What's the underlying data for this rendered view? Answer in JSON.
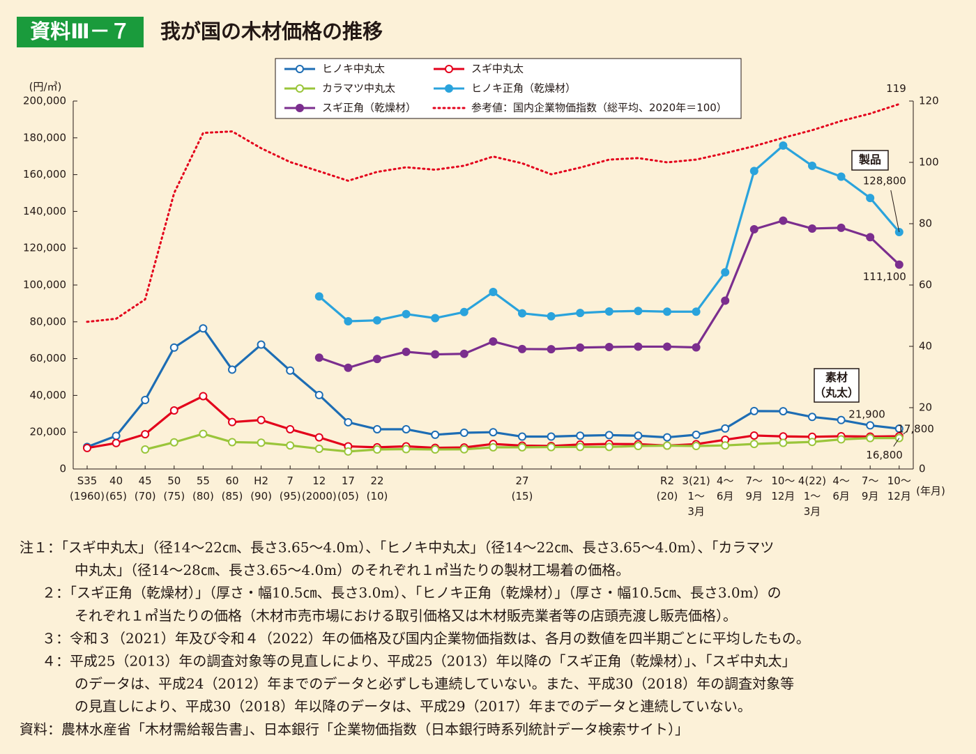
{
  "header": {
    "label": "資料Ⅲ－７",
    "title": "我が国の木材価格の推移"
  },
  "chart_data": {
    "type": "line",
    "y_unit_label": "(円/㎥)",
    "x_unit_label": "(年月)",
    "categories": [
      "S35\n(1960)",
      "40\n(65)",
      "45\n(70)",
      "50\n(75)",
      "55\n(80)",
      "60\n(85)",
      "H2\n(90)",
      "7\n(95)",
      "12\n(2000)",
      "17\n(05)",
      "22\n(10)",
      null,
      null,
      null,
      null,
      "27\n(15)",
      null,
      null,
      null,
      null,
      "R2\n(20)",
      "3(21)\n1～\n3月",
      "4～\n6月",
      "7～\n9月",
      "10～\n12月",
      "4(22)\n1～\n3月",
      "4～\n6月",
      "7～\n9月",
      "10～\n12月"
    ],
    "ylim": [
      0,
      200000
    ],
    "yticks": [
      0,
      {
        "value": 20000,
        "label": "20,000"
      },
      {
        "value": 40000,
        "label": "40,000"
      },
      {
        "value": 60000,
        "label": "60,000"
      },
      {
        "value": 80000,
        "label": "80,000"
      },
      {
        "value": 100000,
        "label": "100,000"
      },
      {
        "value": 120000,
        "label": "120,000"
      },
      {
        "value": 140000,
        "label": "140,000"
      },
      {
        "value": 160000,
        "label": "160,000"
      },
      {
        "value": 180000,
        "label": "180,000"
      },
      {
        "value": 200000,
        "label": "200,000"
      }
    ],
    "y2lim": [
      0,
      120
    ],
    "y2ticks": [
      0,
      20,
      40,
      60,
      80,
      100,
      120
    ],
    "legend": "top",
    "series": [
      {
        "name": "ヒノキ中丸太",
        "color": "#1d6db4",
        "marker": "open",
        "values": [
          12000,
          18000,
          37500,
          66000,
          76400,
          54000,
          67600,
          53500,
          40200,
          25400,
          21600,
          21600,
          18600,
          19700,
          20000,
          17600,
          17600,
          18100,
          18400,
          18100,
          17200,
          18600,
          22000,
          31500,
          31400,
          28300,
          26600,
          23700,
          21900
        ],
        "value_labels": [
          null,
          null,
          null,
          null,
          null,
          null,
          null,
          null,
          null,
          null,
          null,
          null,
          null,
          null,
          null,
          null,
          null,
          null,
          null,
          null,
          null,
          null,
          null,
          null,
          null,
          null,
          null,
          null,
          "21,900"
        ]
      },
      {
        "name": "スギ中丸太",
        "color": "#e3001b",
        "marker": "open",
        "values": [
          11400,
          14100,
          18900,
          31800,
          39600,
          25500,
          26600,
          21600,
          17200,
          12300,
          11800,
          12300,
          11500,
          11700,
          13600,
          12700,
          12500,
          13300,
          13600,
          13500,
          12700,
          13500,
          15900,
          18200,
          17700,
          17500,
          17800,
          17600,
          17800
        ],
        "value_labels": [
          null,
          null,
          null,
          null,
          null,
          null,
          null,
          null,
          null,
          null,
          null,
          null,
          null,
          null,
          null,
          null,
          null,
          null,
          null,
          null,
          null,
          null,
          null,
          null,
          null,
          null,
          null,
          null,
          "17,800"
        ]
      },
      {
        "name": "カラマツ中丸太",
        "color": "#9ac53a",
        "marker": "open",
        "values": [
          null,
          null,
          10600,
          14500,
          19100,
          14600,
          14300,
          12800,
          11000,
          9500,
          10600,
          10800,
          10600,
          10700,
          11800,
          11800,
          11900,
          12000,
          12000,
          12500,
          12700,
          12500,
          12800,
          13600,
          14200,
          14700,
          16100,
          16800,
          16800
        ],
        "value_labels": [
          null,
          null,
          null,
          null,
          null,
          null,
          null,
          null,
          null,
          null,
          null,
          null,
          null,
          null,
          null,
          null,
          null,
          null,
          null,
          null,
          null,
          null,
          null,
          null,
          null,
          null,
          null,
          null,
          "16,800"
        ]
      },
      {
        "name": "ヒノキ正角（乾燥材）",
        "color": "#2aa3dc",
        "marker": "filled",
        "values": [
          null,
          null,
          null,
          null,
          null,
          null,
          null,
          null,
          93800,
          80300,
          80800,
          84200,
          82000,
          85300,
          96200,
          84600,
          83000,
          84800,
          85600,
          85900,
          85500,
          85500,
          106900,
          162000,
          175800,
          164800,
          158900,
          147300,
          128800
        ],
        "value_labels": [
          null,
          null,
          null,
          null,
          null,
          null,
          null,
          null,
          null,
          null,
          null,
          null,
          null,
          null,
          null,
          null,
          null,
          null,
          null,
          null,
          null,
          null,
          null,
          null,
          null,
          null,
          null,
          null,
          "128,800"
        ]
      },
      {
        "name": "スギ正角（乾燥材）",
        "color": "#7b2e8e",
        "marker": "filled",
        "values": [
          null,
          null,
          null,
          null,
          null,
          null,
          null,
          null,
          60500,
          55000,
          59800,
          63700,
          62300,
          62600,
          69300,
          65200,
          65100,
          66000,
          66300,
          66500,
          66500,
          66100,
          91500,
          130300,
          135000,
          130700,
          131100,
          126000,
          111100
        ],
        "value_labels": [
          null,
          null,
          null,
          null,
          null,
          null,
          null,
          null,
          null,
          null,
          null,
          null,
          null,
          null,
          null,
          null,
          null,
          null,
          null,
          null,
          null,
          null,
          null,
          null,
          null,
          null,
          null,
          null,
          "111,100"
        ]
      },
      {
        "name": "参考値：国内企業物価指数（総平均、2020年＝100）",
        "color": "#e3001b",
        "marker": "none",
        "dash": "dotted",
        "axis": "y2",
        "values": [
          48.0,
          49.0,
          55.3,
          90.0,
          109.6,
          110.1,
          104.6,
          100.1,
          97.1,
          94.0,
          96.9,
          98.4,
          97.6,
          98.9,
          101.9,
          99.7,
          96.1,
          98.3,
          100.9,
          101.4,
          100.0,
          100.9,
          103.0,
          105.3,
          108.0,
          110.5,
          113.5,
          115.9,
          119
        ],
        "value_labels": [
          null,
          null,
          null,
          null,
          null,
          null,
          null,
          null,
          null,
          null,
          null,
          null,
          null,
          null,
          null,
          null,
          null,
          null,
          null,
          null,
          null,
          null,
          null,
          null,
          null,
          null,
          null,
          null,
          "119"
        ]
      }
    ],
    "annotations": [
      "製品",
      "素材\n（丸太）"
    ]
  },
  "notes": [
    "注１：「スギ中丸太」（径14～22㎝、長さ3.65～4.0m）、「ヒノキ中丸太」（径14～22㎝、長さ3.65～4.0m）、「カラマツ",
    "中丸太」（径14～28㎝、長さ3.65～4.0m）のそれぞれ１㎥当たりの製材工場着の価格。",
    "２：「スギ正角（乾燥材）」（厚さ・幅10.5㎝、長さ3.0m）、「ヒノキ正角（乾燥材）」（厚さ・幅10.5㎝、長さ3.0m）の",
    "それぞれ１㎥当たりの価格（木材市売市場における取引価格又は木材販売業者等の店頭売渡し販売価格）。",
    "３：令和３（2021）年及び令和４（2022）年の価格及び国内企業物価指数は、各月の数値を四半期ごとに平均したもの。",
    "４：平成25（2013）年の調査対象等の見直しにより、平成25（2013）年以降の「スギ正角（乾燥材）」、「スギ中丸太」",
    "のデータは、平成24（2012）年までのデータと必ずしも連続していない。また、平成30（2018）年の調査対象等",
    "の見直しにより、平成30（2018）年以降のデータは、平成29（2017）年までのデータと連続していない。",
    "資料：農林水産省「木材需給報告書」、日本銀行「企業物価指数（日本銀行時系列統計データ検索サイト）」"
  ]
}
